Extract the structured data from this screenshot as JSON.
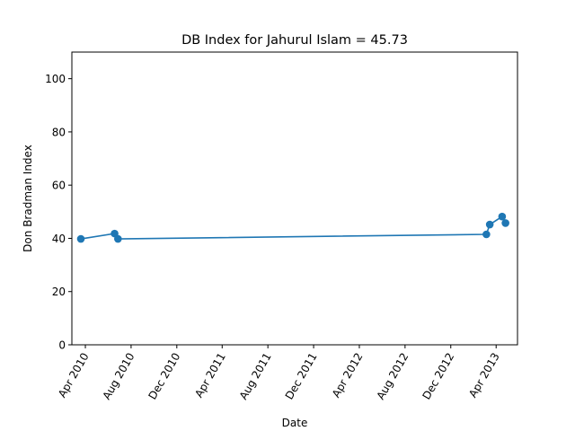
{
  "chart_data": {
    "type": "line",
    "title": "DB Index for Jahurul Islam = 45.73",
    "xlabel": "Date",
    "ylabel": "Don Bradman Index",
    "ylim": [
      0,
      110
    ],
    "xlim": [
      "2010-02-24",
      "2013-05-28"
    ],
    "yticks": [
      0,
      20,
      40,
      60,
      80,
      100
    ],
    "xticks": [
      {
        "date": "2010-04-01",
        "label": "Apr 2010"
      },
      {
        "date": "2010-08-01",
        "label": "Aug 2010"
      },
      {
        "date": "2010-12-01",
        "label": "Dec 2010"
      },
      {
        "date": "2011-04-01",
        "label": "Apr 2011"
      },
      {
        "date": "2011-08-01",
        "label": "Aug 2011"
      },
      {
        "date": "2011-12-01",
        "label": "Dec 2011"
      },
      {
        "date": "2012-04-01",
        "label": "Apr 2012"
      },
      {
        "date": "2012-08-01",
        "label": "Aug 2012"
      },
      {
        "date": "2012-12-01",
        "label": "Dec 2012"
      },
      {
        "date": "2013-04-01",
        "label": "Apr 2013"
      }
    ],
    "grid": false,
    "legend": "none",
    "color": "#1f77b4",
    "series": [
      {
        "points": [
          {
            "x": "2010-03-20",
            "y": 39.8
          },
          {
            "x": "2010-06-18",
            "y": 41.8
          },
          {
            "x": "2010-06-27",
            "y": 39.8
          },
          {
            "x": "2013-03-06",
            "y": 41.5
          },
          {
            "x": "2013-03-15",
            "y": 45.2
          },
          {
            "x": "2013-04-17",
            "y": 48.2
          },
          {
            "x": "2013-04-26",
            "y": 45.73
          }
        ]
      }
    ]
  }
}
